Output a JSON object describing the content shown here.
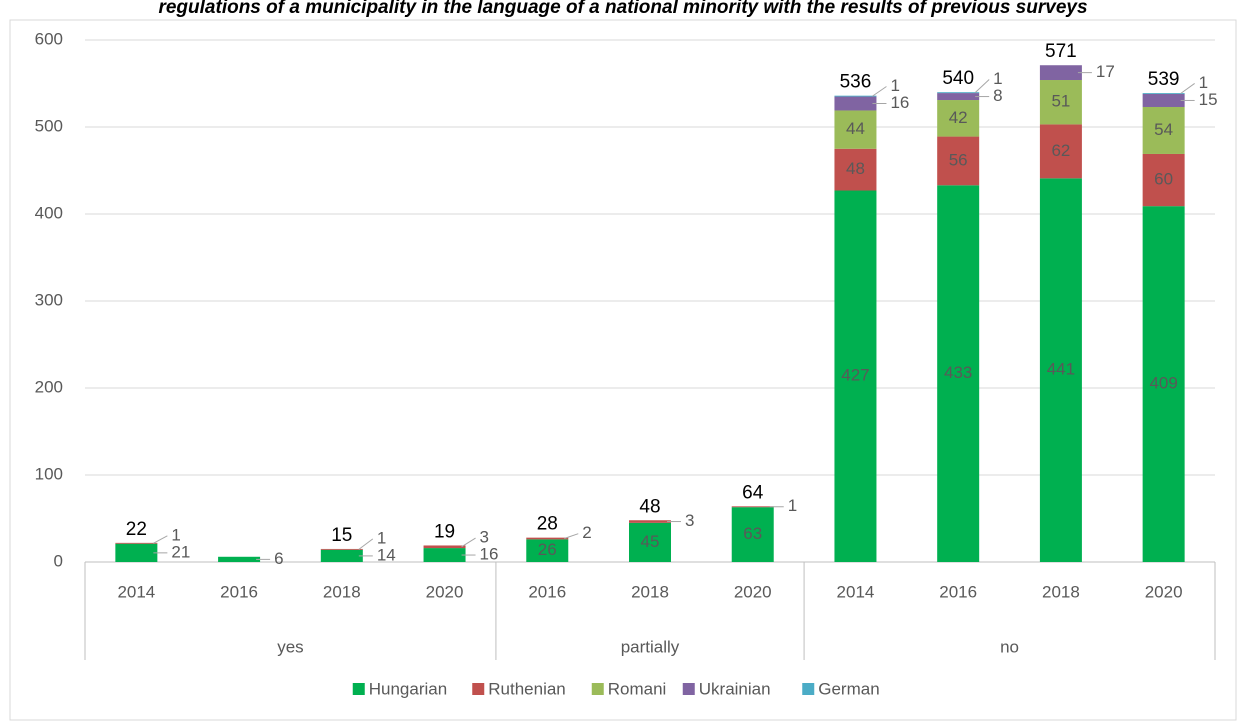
{
  "chart_data": {
    "type": "bar",
    "stacked": true,
    "title": "regulations of a municipality in the language of a national minority with the results of previous surveys",
    "groups": [
      {
        "name": "yes",
        "categories": [
          "2014",
          "2016",
          "2018",
          "2020"
        ]
      },
      {
        "name": "partially",
        "categories": [
          "2016",
          "2018",
          "2020"
        ]
      },
      {
        "name": "no",
        "categories": [
          "2014",
          "2016",
          "2018",
          "2020"
        ]
      }
    ],
    "series": [
      {
        "name": "Hungarian",
        "color": "#00b050",
        "values": [
          21,
          6,
          14,
          16,
          26,
          45,
          63,
          427,
          433,
          441,
          409
        ]
      },
      {
        "name": "Ruthenian",
        "color": "#c0504d",
        "values": [
          1,
          null,
          1,
          3,
          2,
          3,
          1,
          48,
          56,
          62,
          60
        ]
      },
      {
        "name": "Romani",
        "color": "#9bbb59",
        "values": [
          null,
          null,
          null,
          null,
          null,
          null,
          null,
          44,
          42,
          51,
          54
        ]
      },
      {
        "name": "Ukrainian",
        "color": "#8064a2",
        "values": [
          null,
          null,
          null,
          null,
          null,
          null,
          null,
          16,
          8,
          17,
          15
        ]
      },
      {
        "name": "German",
        "color": "#4bacc6",
        "values": [
          null,
          null,
          null,
          null,
          null,
          null,
          null,
          1,
          1,
          null,
          1
        ]
      }
    ],
    "totals": [
      22,
      null,
      15,
      19,
      28,
      48,
      64,
      536,
      540,
      571,
      539
    ],
    "ylim": [
      0,
      600
    ],
    "yticks": [
      0,
      100,
      200,
      300,
      400,
      500,
      600
    ],
    "grid": true,
    "legend": "bottom"
  }
}
